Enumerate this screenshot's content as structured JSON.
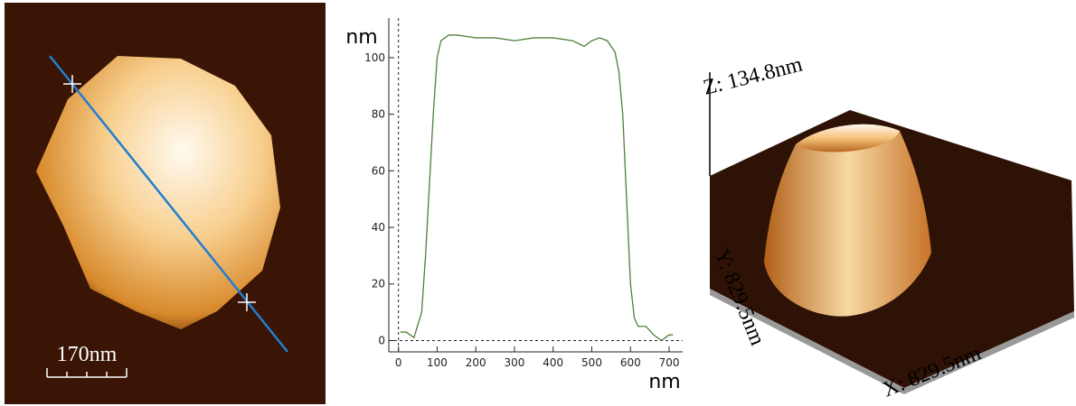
{
  "scale_bar": {
    "label": "170nm"
  },
  "chart_data": {
    "type": "line",
    "y_label": "nm",
    "x_label": "nm",
    "x": [
      5,
      20,
      40,
      60,
      70,
      80,
      90,
      100,
      110,
      120,
      130,
      150,
      200,
      250,
      300,
      350,
      400,
      450,
      480,
      500,
      520,
      540,
      560,
      570,
      580,
      590,
      600,
      610,
      620,
      640,
      660,
      680,
      700,
      710
    ],
    "values": [
      3,
      3,
      1,
      10,
      30,
      55,
      80,
      100,
      106,
      107,
      108,
      108,
      107,
      107,
      106,
      107,
      107,
      106,
      104,
      106,
      107,
      106,
      102,
      95,
      80,
      50,
      20,
      8,
      5,
      5,
      2,
      0,
      2,
      2
    ],
    "color": "#4f7f3f",
    "xlim": [
      -25,
      735
    ],
    "ylim": [
      -4,
      114
    ],
    "xticks": [
      0,
      100,
      200,
      300,
      400,
      500,
      600,
      700
    ],
    "yticks": [
      0,
      20,
      40,
      60,
      80,
      100
    ]
  },
  "render_labels": {
    "z": "Z: 134.8nm",
    "y": "Y: 829.5nm",
    "x": "X: 829.5nm"
  }
}
